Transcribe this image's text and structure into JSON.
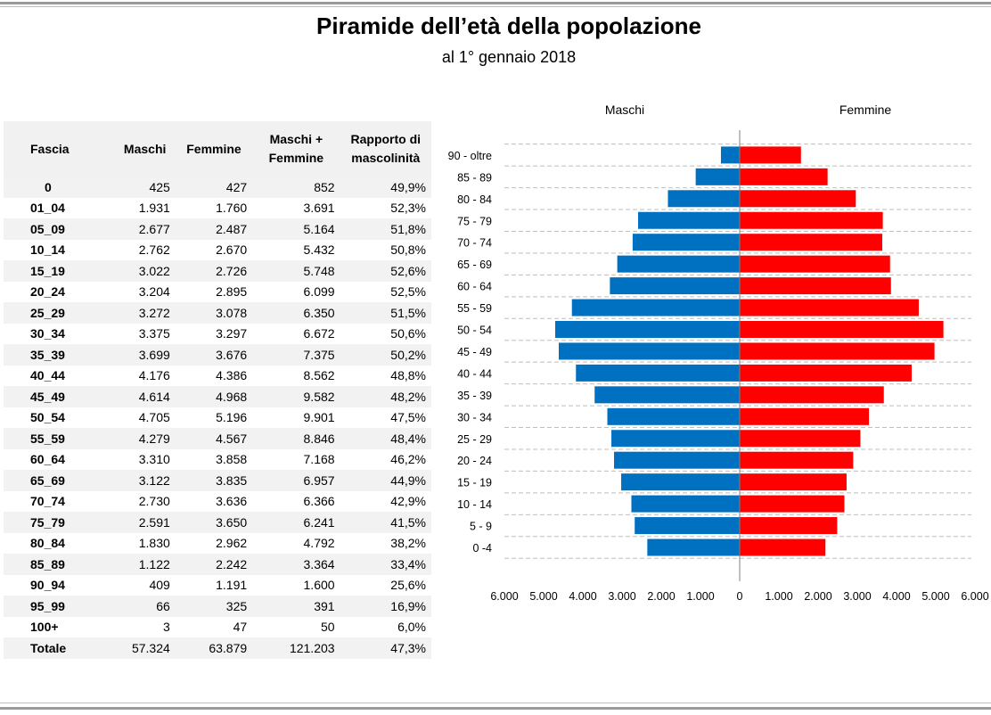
{
  "header": {
    "title": "Piramide dell’età della popolazione",
    "subtitle": "al 1° gennaio 2018"
  },
  "table": {
    "headers": [
      "Fascia",
      "Maschi",
      "Femmine",
      "Maschi + Femmine",
      "Rapporto di mascolinità"
    ],
    "header_lines": {
      "c4": [
        "Maschi +",
        "Femmine"
      ],
      "c5": [
        "Rapporto di",
        "mascolinità"
      ]
    },
    "rows": [
      [
        "0",
        "425",
        "427",
        "852",
        "49,9%"
      ],
      [
        "01_04",
        "1.931",
        "1.760",
        "3.691",
        "52,3%"
      ],
      [
        "05_09",
        "2.677",
        "2.487",
        "5.164",
        "51,8%"
      ],
      [
        "10_14",
        "2.762",
        "2.670",
        "5.432",
        "50,8%"
      ],
      [
        "15_19",
        "3.022",
        "2.726",
        "5.748",
        "52,6%"
      ],
      [
        "20_24",
        "3.204",
        "2.895",
        "6.099",
        "52,5%"
      ],
      [
        "25_29",
        "3.272",
        "3.078",
        "6.350",
        "51,5%"
      ],
      [
        "30_34",
        "3.375",
        "3.297",
        "6.672",
        "50,6%"
      ],
      [
        "35_39",
        "3.699",
        "3.676",
        "7.375",
        "50,2%"
      ],
      [
        "40_44",
        "4.176",
        "4.386",
        "8.562",
        "48,8%"
      ],
      [
        "45_49",
        "4.614",
        "4.968",
        "9.582",
        "48,2%"
      ],
      [
        "50_54",
        "4.705",
        "5.196",
        "9.901",
        "47,5%"
      ],
      [
        "55_59",
        "4.279",
        "4.567",
        "8.846",
        "48,4%"
      ],
      [
        "60_64",
        "3.310",
        "3.858",
        "7.168",
        "46,2%"
      ],
      [
        "65_69",
        "3.122",
        "3.835",
        "6.957",
        "44,9%"
      ],
      [
        "70_74",
        "2.730",
        "3.636",
        "6.366",
        "42,9%"
      ],
      [
        "75_79",
        "2.591",
        "3.650",
        "6.241",
        "41,5%"
      ],
      [
        "80_84",
        "1.830",
        "2.962",
        "4.792",
        "38,2%"
      ],
      [
        "85_89",
        "1.122",
        "2.242",
        "3.364",
        "33,4%"
      ],
      [
        "90_94",
        "409",
        "1.191",
        "1.600",
        "25,6%"
      ],
      [
        "95_99",
        "66",
        "325",
        "391",
        "16,9%"
      ],
      [
        "100+",
        "3",
        "47",
        "50",
        "6,0%"
      ]
    ],
    "total": [
      "Totale",
      "57.324",
      "63.879",
      "121.203",
      "47,3%"
    ]
  },
  "chart_data": {
    "type": "bar",
    "orientation": "horizontal-pyramid",
    "title": "",
    "categories": [
      "0 -4",
      "5 - 9",
      "10 - 14",
      "15 - 19",
      "20 - 24",
      "25 - 29",
      "30 - 34",
      "35 - 39",
      "40 - 44",
      "45 - 49",
      "50 - 54",
      "55 - 59",
      "60 - 64",
      "65 - 69",
      "70 - 74",
      "75 - 79",
      "80 - 84",
      "85 - 89",
      "90 - oltre"
    ],
    "series": [
      {
        "name": "Maschi",
        "color": "#0070c0",
        "values": [
          2356,
          2677,
          2762,
          3022,
          3204,
          3272,
          3375,
          3699,
          4176,
          4614,
          4705,
          4279,
          3310,
          3122,
          2730,
          2591,
          1830,
          1122,
          478
        ]
      },
      {
        "name": "Femmine",
        "color": "#ff0000",
        "values": [
          2187,
          2487,
          2670,
          2726,
          2895,
          3078,
          3297,
          3676,
          4386,
          4968,
          5196,
          4567,
          3858,
          3835,
          3636,
          3650,
          2962,
          2242,
          1563
        ]
      }
    ],
    "xlim": [
      -6000,
      6000
    ],
    "xticks": [
      "6.000",
      "5.000",
      "4.000",
      "3.000",
      "2.000",
      "1.000",
      "0",
      "1.000",
      "2.000",
      "3.000",
      "4.000",
      "5.000",
      "6.000"
    ],
    "grid": true
  }
}
